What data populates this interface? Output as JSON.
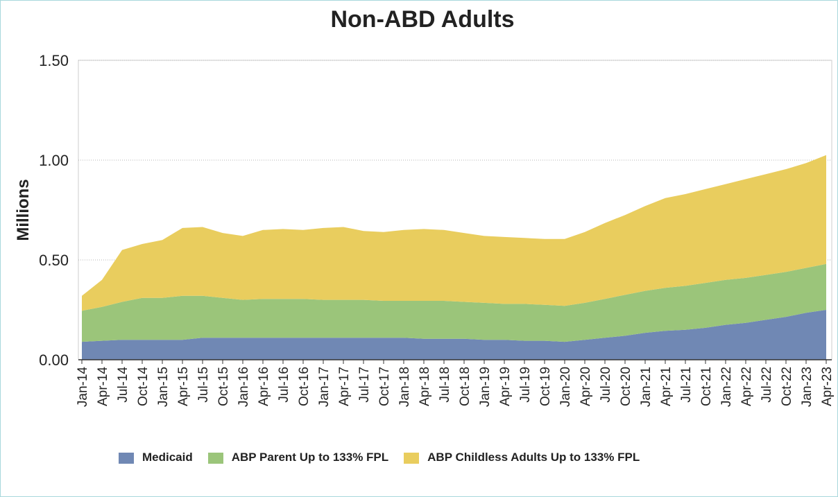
{
  "chart_data": {
    "type": "stacked_area",
    "title": "Non-ABD Adults",
    "y_label": "Millions",
    "categories": [
      "Jan-14",
      "Apr-14",
      "Jul-14",
      "Oct-14",
      "Jan-15",
      "Apr-15",
      "Jul-15",
      "Oct-15",
      "Jan-16",
      "Apr-16",
      "Jul-16",
      "Oct-16",
      "Jan-17",
      "Apr-17",
      "Jul-17",
      "Oct-17",
      "Jan-18",
      "Apr-18",
      "Jul-18",
      "Oct-18",
      "Jan-19",
      "Apr-19",
      "Jul-19",
      "Oct-19",
      "Jan-20",
      "Apr-20",
      "Jul-20",
      "Oct-20",
      "Jan-21",
      "Apr-21",
      "Jul-21",
      "Oct-21",
      "Jan-22",
      "Apr-22",
      "Jul-22",
      "Oct-22",
      "Jan-23",
      "Apr-23"
    ],
    "series": [
      {
        "name": "Medicaid",
        "color": "#7088b4",
        "values": [
          0.09,
          0.095,
          0.1,
          0.1,
          0.1,
          0.1,
          0.11,
          0.11,
          0.11,
          0.11,
          0.11,
          0.11,
          0.11,
          0.11,
          0.11,
          0.11,
          0.11,
          0.105,
          0.105,
          0.105,
          0.1,
          0.1,
          0.095,
          0.095,
          0.09,
          0.1,
          0.11,
          0.12,
          0.135,
          0.145,
          0.15,
          0.16,
          0.175,
          0.185,
          0.2,
          0.215,
          0.235,
          0.25
        ]
      },
      {
        "name": "ABP Parent Up to 133% FPL",
        "color": "#9bc57a",
        "values": [
          0.155,
          0.17,
          0.19,
          0.21,
          0.21,
          0.22,
          0.21,
          0.2,
          0.19,
          0.195,
          0.195,
          0.195,
          0.19,
          0.19,
          0.19,
          0.185,
          0.185,
          0.19,
          0.19,
          0.185,
          0.185,
          0.18,
          0.185,
          0.18,
          0.18,
          0.185,
          0.195,
          0.205,
          0.21,
          0.215,
          0.22,
          0.225,
          0.225,
          0.225,
          0.225,
          0.225,
          0.225,
          0.23
        ]
      },
      {
        "name": "ABP Childless Adults Up to 133% FPL",
        "color": "#e9cd5e",
        "values": [
          0.075,
          0.135,
          0.26,
          0.27,
          0.29,
          0.34,
          0.345,
          0.325,
          0.32,
          0.345,
          0.35,
          0.345,
          0.36,
          0.365,
          0.345,
          0.345,
          0.355,
          0.36,
          0.355,
          0.345,
          0.335,
          0.335,
          0.33,
          0.33,
          0.335,
          0.355,
          0.38,
          0.4,
          0.425,
          0.45,
          0.46,
          0.47,
          0.48,
          0.495,
          0.505,
          0.515,
          0.525,
          0.545
        ]
      }
    ],
    "ylim": [
      0,
      1.5
    ],
    "yticks": [
      {
        "value": 0,
        "label": "0.00"
      },
      {
        "value": 0.5,
        "label": "0.50"
      },
      {
        "value": 1,
        "label": "1.00"
      },
      {
        "value": 1.5,
        "label": "1.50"
      }
    ],
    "grid": true,
    "legend": "bottom"
  }
}
